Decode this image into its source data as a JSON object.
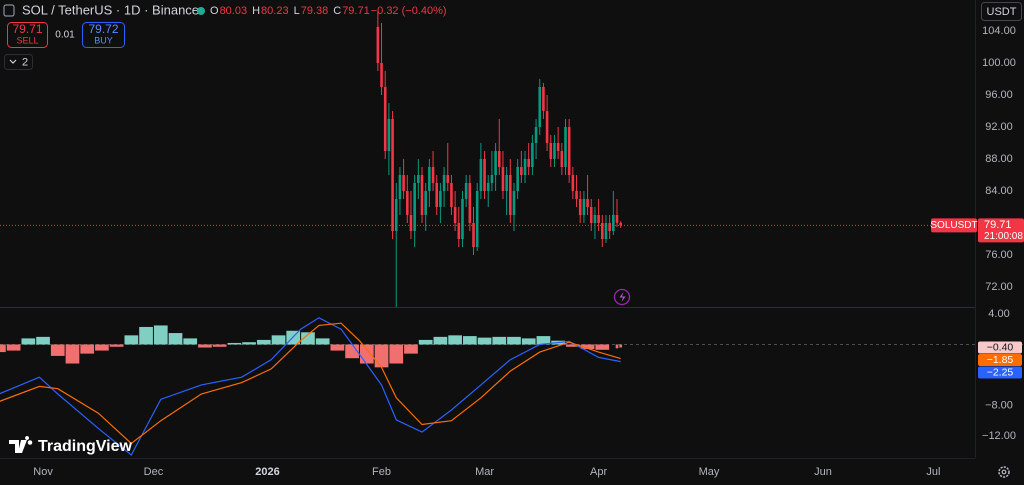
{
  "header": {
    "symbol_short": "USDT",
    "sell_price": "79.71",
    "sell_label": "SELL",
    "spread": "0.01",
    "buy_price": "79.72",
    "buy_label": "BUY",
    "indicator_count": "2",
    "brand": "TradingView"
  },
  "chart_data": [
    {
      "type": "candlestick",
      "title": "SOL / TetherUS · 1D · Binance",
      "ohlc_labels": [
        "O",
        "H",
        "L",
        "C"
      ],
      "change": "−0.32 (−0.40%)",
      "price_line_label": "SOLUSDT",
      "countdown": "21:00:08",
      "up_color": "#089981",
      "down_color": "#f23645",
      "x": [
        91,
        92,
        93,
        94,
        95,
        96,
        97,
        98,
        99,
        100,
        101,
        102,
        103,
        104,
        105,
        106,
        107,
        108,
        109,
        110,
        111,
        112,
        113,
        114,
        115,
        116,
        117,
        118,
        119,
        120,
        121,
        122,
        123,
        124,
        125,
        126,
        127,
        128,
        129,
        130,
        131,
        132,
        133,
        134,
        135,
        136,
        137,
        138,
        139,
        140,
        141,
        142,
        143,
        144,
        145,
        146,
        147,
        148,
        149,
        150,
        151,
        152,
        153,
        154,
        155,
        156,
        157
      ],
      "open": [
        104.5,
        100,
        97,
        89,
        93,
        79,
        83,
        86,
        84,
        81,
        79,
        85,
        86,
        81,
        84,
        87,
        85,
        82,
        84,
        86,
        85,
        82,
        80,
        78,
        83,
        85,
        80,
        77,
        84,
        88,
        84,
        85,
        86,
        89,
        87,
        84,
        86,
        81,
        84,
        87,
        86,
        88,
        87,
        90,
        92,
        97,
        94,
        90,
        88,
        90,
        89,
        87,
        92,
        86,
        84,
        83,
        81,
        83,
        82,
        80,
        81,
        80,
        78,
        80,
        79,
        81,
        80.03
      ],
      "high": [
        106.5,
        105,
        99,
        95,
        94,
        85,
        87,
        88,
        86,
        84,
        86,
        88,
        87,
        85,
        88,
        89,
        86,
        85,
        87,
        90,
        86,
        84,
        82,
        84,
        86,
        86,
        82,
        85,
        90,
        89,
        86,
        89,
        90,
        93,
        89,
        87,
        88,
        85,
        88,
        89,
        89,
        90,
        91,
        93,
        98,
        97.5,
        96,
        91,
        91,
        92,
        90,
        93,
        93,
        87,
        86,
        84,
        84,
        86,
        83,
        82,
        83,
        81,
        81,
        81,
        84,
        83,
        80.23
      ],
      "low": [
        99,
        96,
        88,
        86,
        78,
        69.5,
        81,
        83,
        80,
        78,
        77,
        83,
        80,
        79,
        82,
        84,
        81,
        80,
        82,
        84,
        81,
        79,
        77,
        77,
        82,
        79,
        76,
        76.5,
        83,
        83,
        82,
        84,
        84,
        86,
        83,
        81,
        80,
        79,
        83,
        85,
        85,
        86,
        86,
        88,
        91,
        93,
        89,
        87,
        87,
        88,
        86,
        86,
        85,
        83,
        82,
        80,
        80,
        81,
        79,
        78,
        79,
        77,
        77.5,
        78,
        78.5,
        79.5,
        79.38
      ],
      "close": [
        100,
        97,
        89,
        93,
        79,
        83,
        86,
        84,
        81,
        79,
        85,
        86,
        81,
        84,
        87,
        85,
        82,
        84,
        86,
        85,
        82,
        80,
        78,
        83,
        85,
        80,
        77,
        84,
        88,
        84,
        85,
        86,
        89,
        87,
        84,
        86,
        81,
        84,
        87,
        86,
        88,
        87,
        90,
        92,
        97,
        94,
        90,
        88,
        90,
        89,
        87,
        92,
        86,
        84,
        83,
        81,
        83,
        82,
        80,
        81,
        80,
        78,
        80,
        79,
        81,
        80.03,
        79.71
      ],
      "xlim": [
        -11.7,
        253.3
      ],
      "xticks": [
        {
          "value": 0,
          "label": "Nov"
        },
        {
          "value": 30,
          "label": "Dec"
        },
        {
          "value": 61,
          "label": "2026"
        },
        {
          "value": 92,
          "label": "Feb"
        },
        {
          "value": 120,
          "label": "Mar"
        },
        {
          "value": 151,
          "label": "Apr"
        },
        {
          "value": 181,
          "label": "May"
        },
        {
          "value": 212,
          "label": "Jun"
        },
        {
          "value": 242,
          "label": "Jul"
        }
      ],
      "ylim": [
        69.5,
        107.875
      ],
      "yticks": [
        {
          "value": 72,
          "label": "72.00"
        },
        {
          "value": 76,
          "label": "76.00"
        },
        {
          "value": 80,
          "label": "80.00"
        },
        {
          "value": 84,
          "label": "84.00"
        },
        {
          "value": 88,
          "label": "88.00"
        },
        {
          "value": 92,
          "label": "92.00"
        },
        {
          "value": 96,
          "label": "96.00"
        },
        {
          "value": 100,
          "label": "100.00"
        },
        {
          "value": 104,
          "label": "104.00"
        }
      ]
    },
    {
      "type": "macd",
      "x": [
        -12,
        -1,
        4,
        15,
        24,
        32,
        43,
        54,
        62,
        70,
        75,
        81,
        86,
        92,
        96,
        103,
        111,
        119,
        127,
        135,
        143,
        151,
        157
      ],
      "series": [
        {
          "color": "#2962ff",
          "values": [
            -6.5,
            -4.3,
            -6.5,
            -11,
            -14.5,
            -7.2,
            -5.3,
            -4.3,
            -2,
            2,
            3.5,
            2,
            -1.3,
            -5.3,
            -9.9,
            -11.5,
            -8.6,
            -5.3,
            -2,
            0,
            0.4,
            -1.7,
            -2.25
          ],
          "last_label": "−2.25"
        },
        {
          "color": "#ff6d00",
          "values": [
            -7.5,
            -5.5,
            -5.8,
            -9,
            -13,
            -10,
            -6.5,
            -5,
            -3.2,
            0.5,
            2.5,
            2.8,
            0.5,
            -3,
            -7,
            -10.5,
            -10,
            -7,
            -3.5,
            -1,
            0.3,
            -1,
            -1.85
          ],
          "last_label": "−1.85"
        }
      ],
      "histogram": {
        "pos_color": "#7fcfc2",
        "neg_color": "#f07070",
        "label_color": "#f8c9c9",
        "x": [
          -12,
          -8,
          -4,
          0,
          4,
          8,
          12,
          16,
          20,
          24,
          28,
          32,
          36,
          40,
          44,
          48,
          52,
          56,
          60,
          64,
          68,
          72,
          76,
          80,
          84,
          88,
          92,
          96,
          100,
          104,
          108,
          112,
          116,
          120,
          124,
          128,
          132,
          136,
          140,
          144,
          148,
          152,
          156,
          157
        ],
        "values": [
          -1,
          -0.8,
          0.8,
          1,
          -1.5,
          -2.5,
          -1.2,
          -0.8,
          -0.3,
          1.2,
          2.3,
          2.5,
          1.5,
          0.8,
          -0.4,
          -0.3,
          0.2,
          0.3,
          0.6,
          1.2,
          1.8,
          1.6,
          0.8,
          -0.8,
          -1.8,
          -2.5,
          -3,
          -2.5,
          -1.2,
          0.6,
          1,
          1.2,
          1.1,
          0.9,
          1,
          1,
          0.8,
          1.1,
          0.5,
          -0.3,
          -0.6,
          -0.7,
          -0.5,
          -0.4
        ],
        "last_label": "−0.40"
      },
      "ylim": [
        -14.9,
        4.92
      ],
      "yticks": [
        {
          "value": 4,
          "label": "4.00"
        },
        {
          "value": -8,
          "label": "−8.00"
        },
        {
          "value": -12,
          "label": "−12.00"
        }
      ]
    }
  ]
}
